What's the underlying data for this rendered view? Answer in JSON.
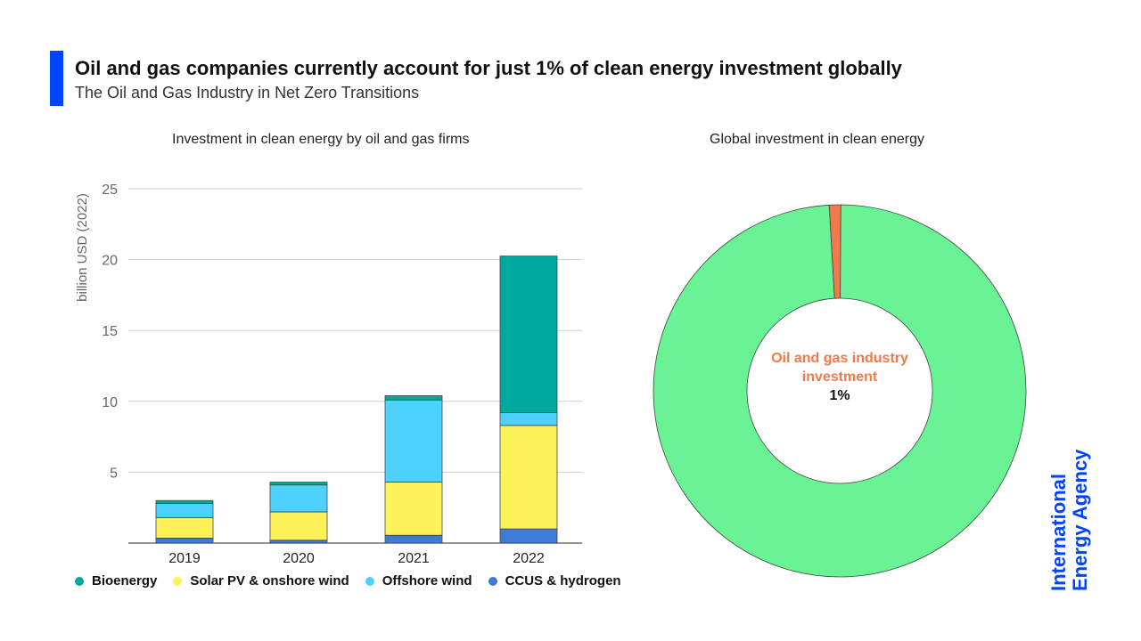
{
  "header": {
    "title": "Oil and gas companies currently account for just 1% of clean energy investment globally",
    "subtitle": "The Oil and Gas Industry in Net Zero Transitions",
    "accent_color": "#0044ff"
  },
  "chart_data": [
    {
      "type": "bar",
      "stacked": true,
      "title": "Investment in clean energy by oil and gas firms",
      "ylabel": "billion USD (2022)",
      "xlabel": "",
      "ylim": [
        0,
        25
      ],
      "yticks": [
        5,
        10,
        15,
        20,
        25
      ],
      "categories": [
        "2019",
        "2020",
        "2021",
        "2022"
      ],
      "grid": true,
      "legend_position": "bottom",
      "series": [
        {
          "name": "CCUS & hydrogen",
          "color": "#3e7bd6",
          "values": [
            0.35,
            0.2,
            0.55,
            1.0
          ]
        },
        {
          "name": "Solar PV & onshore wind",
          "color": "#fff35c",
          "values": [
            1.45,
            2.0,
            3.75,
            7.3
          ]
        },
        {
          "name": "Offshore wind",
          "color": "#4dd2ff",
          "values": [
            1.0,
            1.9,
            5.8,
            0.9
          ]
        },
        {
          "name": "Bioenergy",
          "color": "#00a99d",
          "values": [
            0.2,
            0.2,
            0.3,
            11.05
          ]
        }
      ]
    },
    {
      "type": "pie",
      "donut": true,
      "title": "Global investment in clean energy",
      "slices": [
        {
          "label": "Oil and gas industry investment",
          "value": 1,
          "color": "#f07a4a"
        },
        {
          "label": "",
          "value": 99,
          "color": "#69f394"
        }
      ],
      "center_label": "Oil and gas industry investment",
      "center_value": "1%"
    }
  ],
  "legend": [
    {
      "label": "Bioenergy",
      "color": "#00a99d"
    },
    {
      "label": "Solar PV & onshore wind",
      "color": "#fff35c"
    },
    {
      "label": "Offshore wind",
      "color": "#4dd2ff"
    },
    {
      "label": "CCUS & hydrogen",
      "color": "#3e7bd6"
    }
  ],
  "logo": {
    "line1": "International",
    "line2": "Energy Agency",
    "color": "#0044ff"
  }
}
